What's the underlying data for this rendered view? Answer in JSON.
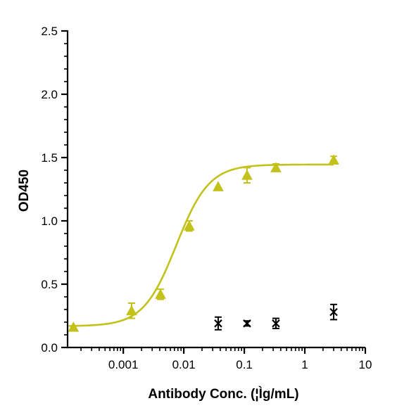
{
  "chart_data": {
    "type": "scatter",
    "xlabel": "Antibody Conc. (¦Ìg/mL)",
    "ylabel": "OD450",
    "x_scale": "log",
    "xlim": [
      0.00012,
      10
    ],
    "ylim": [
      0,
      2.5
    ],
    "x_ticks": [
      {
        "value": 0.001,
        "label": "0.001"
      },
      {
        "value": 0.01,
        "label": "0.01"
      },
      {
        "value": 0.1,
        "label": "0.1"
      },
      {
        "value": 1,
        "label": "1"
      },
      {
        "value": 10,
        "label": "10"
      }
    ],
    "y_ticks": [
      {
        "value": 0.0,
        "label": "0.0"
      },
      {
        "value": 0.5,
        "label": "0.5"
      },
      {
        "value": 1.0,
        "label": "1.0"
      },
      {
        "value": 1.5,
        "label": "1.5"
      },
      {
        "value": 2.0,
        "label": "2.0"
      },
      {
        "value": 2.5,
        "label": "2.5"
      }
    ],
    "grid": false,
    "series": [
      {
        "marker": "triangle",
        "color": "#C2C21A",
        "fit": "four-parameter-logistic",
        "fit_params": {
          "bottom": 0.168,
          "top": 1.445,
          "ec50": 0.0075,
          "hill": 1.6
        },
        "points": [
          {
            "x": 0.00015,
            "y": 0.16,
            "err": 0.0
          },
          {
            "x": 0.00137,
            "y": 0.29,
            "err": 0.06
          },
          {
            "x": 0.00412,
            "y": 0.42,
            "err": 0.04
          },
          {
            "x": 0.0123,
            "y": 0.96,
            "err": 0.04
          },
          {
            "x": 0.037,
            "y": 1.27,
            "err": 0.0
          },
          {
            "x": 0.111,
            "y": 1.36,
            "err": 0.06
          },
          {
            "x": 0.333,
            "y": 1.42,
            "err": 0.03
          },
          {
            "x": 3.0,
            "y": 1.48,
            "err": 0.03
          }
        ]
      },
      {
        "marker": "x",
        "color": "#000000",
        "fit": "none",
        "points": [
          {
            "x": 0.037,
            "y": 0.19,
            "err": 0.05
          },
          {
            "x": 0.111,
            "y": 0.19,
            "err": 0.02
          },
          {
            "x": 0.333,
            "y": 0.19,
            "err": 0.04
          },
          {
            "x": 3.0,
            "y": 0.28,
            "err": 0.06
          }
        ]
      }
    ]
  }
}
